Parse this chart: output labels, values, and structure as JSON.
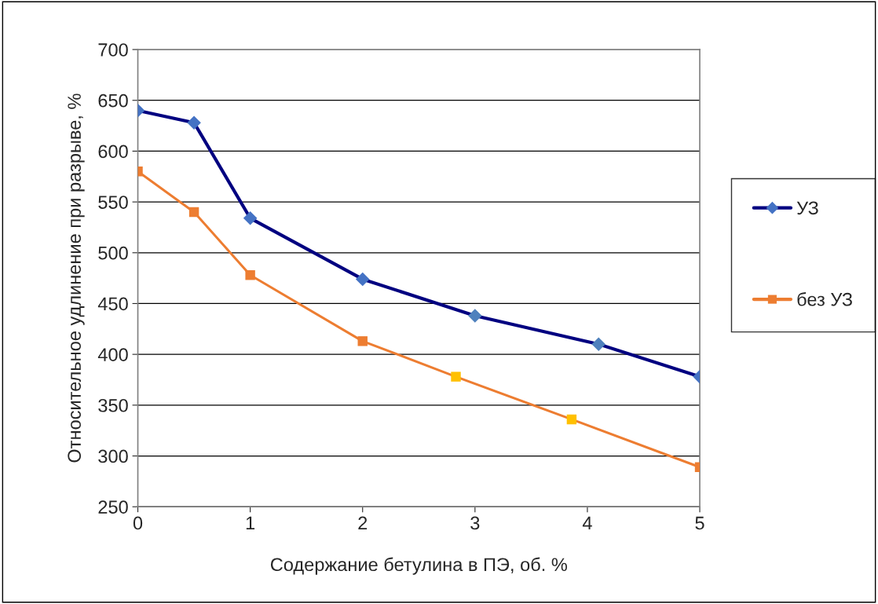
{
  "chart_data": {
    "type": "line",
    "xlabel": "Содержание бетулина в ПЭ, об. %",
    "ylabel": "Относительное удлинение при разрыве, %",
    "xlim": [
      0,
      5
    ],
    "xticks": [
      0,
      1,
      2,
      3,
      4,
      5
    ],
    "ylim": [
      250,
      700
    ],
    "yticks": [
      250,
      300,
      350,
      400,
      450,
      500,
      550,
      600,
      650,
      700
    ],
    "grid": "y",
    "legend": "right",
    "series": [
      {
        "name": "УЗ",
        "color": "#000080",
        "marker": "diamond",
        "x": [
          0,
          0.5,
          1,
          2,
          3,
          4.1,
          5
        ],
        "values": [
          640,
          628,
          534,
          474,
          438,
          410,
          378
        ],
        "colors": [
          "#4472c4",
          "#4472c4",
          "#4472c4",
          "#4472c4",
          "#4f81bd",
          "#4f81bd",
          "#4472c4"
        ]
      },
      {
        "name": "без УЗ",
        "color": "#ed7d31",
        "marker": "square",
        "x": [
          0,
          0.5,
          1,
          2,
          2.83,
          3.86,
          5
        ],
        "values": [
          580,
          540,
          478,
          413,
          378,
          336,
          289
        ],
        "colors": [
          "#ed7d31",
          "#ed7d31",
          "#ed7d31",
          "#ed7d31",
          "#ffc000",
          "#ffc000",
          "#ed7d31"
        ]
      }
    ]
  }
}
